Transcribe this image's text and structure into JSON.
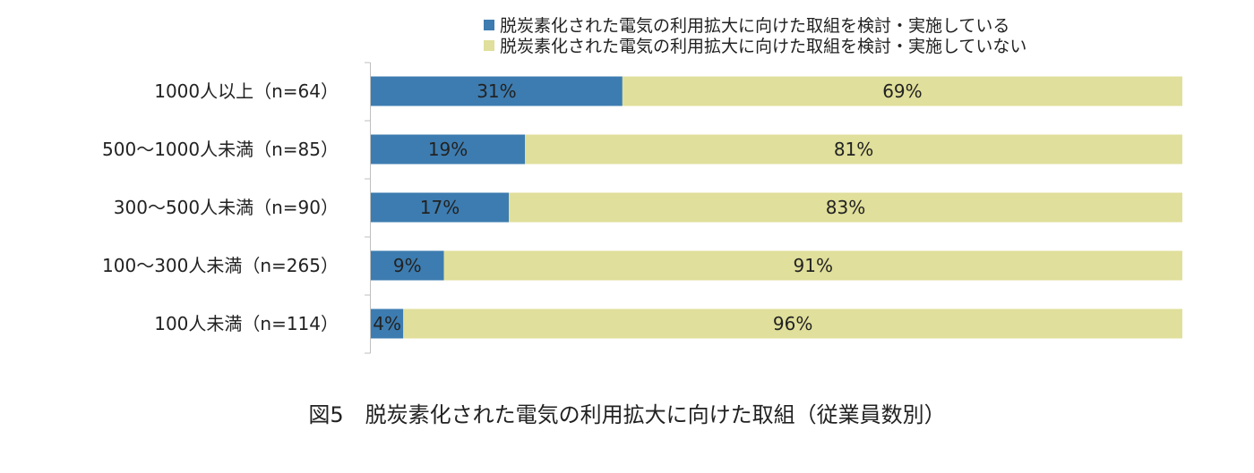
{
  "caption": "図5　脱炭素化された電気の利用拡大に向けた取組（従業員数別）",
  "chart_data": {
    "type": "bar",
    "orientation": "horizontal",
    "stacked": "percent",
    "categories": [
      "1000人以上（n=64）",
      "500～1000人未満（n=85）",
      "300～500人未満（n=90）",
      "100～300人未満（n=265）",
      "100人未満（n=114）"
    ],
    "series": [
      {
        "name": "脱炭素化された電気の利用拡大に向けた取組を検討・実施している",
        "color": "#3d7cb0",
        "values": [
          31,
          19,
          17,
          9,
          4
        ],
        "labels": [
          "31%",
          "19%",
          "17%",
          "9%",
          "4%"
        ]
      },
      {
        "name": "脱炭素化された電気の利用拡大に向けた取組を検討・実施していない",
        "color": "#e0df9b",
        "values": [
          69,
          81,
          83,
          91,
          96
        ],
        "labels": [
          "69%",
          "81%",
          "83%",
          "91%",
          "96%"
        ]
      }
    ],
    "xlim": [
      0,
      100
    ],
    "grid": false,
    "legend_position": "top"
  }
}
